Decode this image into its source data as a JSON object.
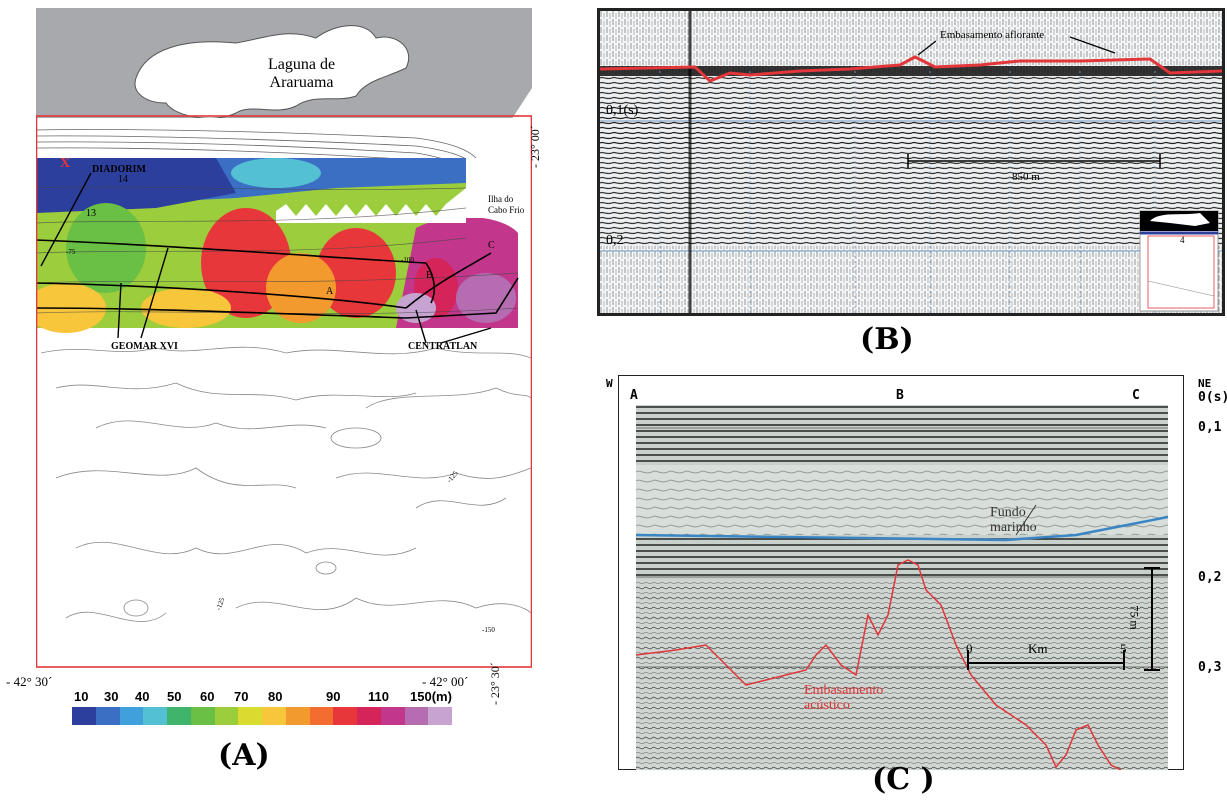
{
  "panel_a": {
    "label": "(A)",
    "lagoon": "Laguna de\nAraruama",
    "lagoon_line1": "Laguna de",
    "lagoon_line2": "Araruama",
    "diadorim": "DIADORIM",
    "diadorim_num": "14",
    "island_line1": "Ilha do",
    "island_line2": "Cabo Frio",
    "lat_top": "- 23° 00´",
    "lat_bottom": "- 23° 30´",
    "lon_left": "- 42° 30´",
    "lon_right": "- 42° 00´",
    "geomar": "GEOMAR XVI",
    "centratlan": "CENTRATLAN",
    "points": [
      "A",
      "B",
      "C"
    ],
    "x_mark": "X",
    "num_13": "13",
    "contour_labels": [
      "-75",
      "-100",
      "-125",
      "-150",
      "-125"
    ],
    "scale_values": [
      "10",
      "30",
      "40",
      "50",
      "60",
      "70",
      "80",
      "90",
      "110",
      "150(m)"
    ],
    "scale_colors": [
      "#2c3f9c",
      "#3b6fc4",
      "#3fa0dc",
      "#53c1d3",
      "#3fb46a",
      "#6abf45",
      "#9ccd3c",
      "#d9dc2e",
      "#f7c63a",
      "#f39a2f",
      "#f36d30",
      "#e8373a",
      "#d4245a",
      "#c2378b",
      "#b56cb0",
      "#c7a3d1"
    ]
  },
  "panel_b": {
    "label": "(B)",
    "annotation": "Embasamento aflorante",
    "time_1": "0,1(s)",
    "time_2": "0,2",
    "scale": "850 m",
    "inset_num": "4"
  },
  "panel_c": {
    "label": "(C )",
    "w": "W",
    "ne": "NE",
    "a": "A",
    "b": "B",
    "c": "C",
    "t0": "0(s)",
    "t1": "0,1",
    "t2": "0,2",
    "t3": "0,3",
    "fundo_line1": "Fundo",
    "fundo_line2": "marinho",
    "emb_line1": "Embasamento",
    "emb_line2": "acústico",
    "km": "Km",
    "km0": "0",
    "km5": "5",
    "depth": "75 m"
  }
}
